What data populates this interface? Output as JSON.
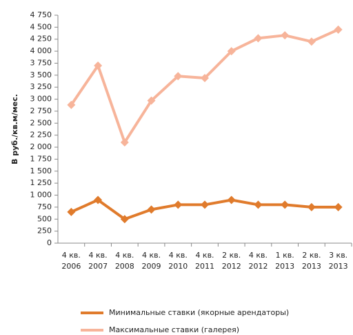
{
  "chart_data": {
    "type": "line",
    "y_label": "В руб./кв.м/мес.",
    "categories": [
      "4 кв. 2006",
      "4 кв. 2007",
      "4 кв. 2008",
      "4 кв. 2009",
      "4 кв. 2010",
      "4 кв. 2011",
      "2 кв. 2012",
      "4 кв. 2012",
      "1 кв. 2013",
      "2 кв. 2013",
      "3 кв. 2013"
    ],
    "series": [
      {
        "name": "Минимальные ставки (якорные арендаторы)",
        "color": "#e07b2c",
        "values": [
          650,
          900,
          500,
          700,
          800,
          800,
          900,
          800,
          800,
          750,
          750
        ]
      },
      {
        "name": "Максимальные ставки (галерея)",
        "color": "#f7b49a",
        "values": [
          2880,
          3700,
          2100,
          2970,
          3480,
          3440,
          4000,
          4270,
          4330,
          4200,
          4450
        ]
      }
    ],
    "ylim": [
      0,
      4750
    ],
    "yticks": [
      0,
      250,
      500,
      750,
      {
        "value": 1000,
        "label": "1 000"
      },
      {
        "value": 1250,
        "label": "1 250"
      },
      {
        "value": 1500,
        "label": "1 500"
      },
      {
        "value": 1750,
        "label": "1 750"
      },
      {
        "value": 2000,
        "label": "2 000"
      },
      {
        "value": 2250,
        "label": "2 250"
      },
      {
        "value": 2500,
        "label": "2 500"
      },
      {
        "value": 2750,
        "label": "2 750"
      },
      {
        "value": 3000,
        "label": "3 000"
      },
      {
        "value": 3250,
        "label": "3 250"
      },
      {
        "value": 3500,
        "label": "3 500"
      },
      {
        "value": 3750,
        "label": "3 750"
      },
      {
        "value": 4000,
        "label": "4 000"
      },
      {
        "value": 4250,
        "label": "4 250"
      },
      {
        "value": 4500,
        "label": "4 500"
      },
      {
        "value": 4750,
        "label": "4 750"
      }
    ],
    "grid": false,
    "legend": "bottom"
  }
}
